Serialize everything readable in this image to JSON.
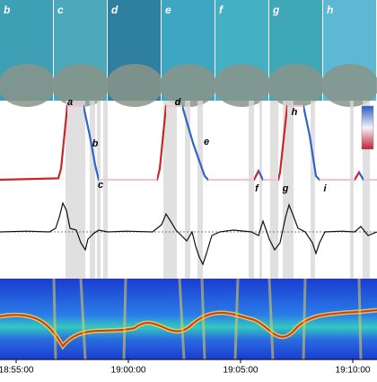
{
  "photo_labels": [
    "b",
    "c",
    "d",
    "e",
    "f",
    "g",
    "h"
  ],
  "chart_data": {
    "type": "line",
    "annotations": [
      "a",
      "b",
      "c",
      "d",
      "e",
      "f",
      "g",
      "h",
      "i"
    ],
    "xlim": [
      54.28,
      71.08
    ],
    "xticks": [
      {
        "value": 55,
        "label": "18:55:00"
      },
      {
        "value": 60,
        "label": "19:00:00"
      },
      {
        "value": 65,
        "label": "19:05:00"
      },
      {
        "value": 70,
        "label": "19:10:00"
      }
    ],
    "shaded_intervals": [
      [
        57.2,
        58.08
      ],
      [
        58.28,
        58.52
      ],
      [
        58.6,
        58.76
      ],
      [
        58.88,
        59.08
      ],
      [
        61.56,
        62.16
      ],
      [
        62.52,
        62.76
      ],
      [
        63.08,
        63.32
      ],
      [
        65.36,
        65.6
      ],
      [
        65.84,
        65.96
      ],
      [
        66.32,
        66.68
      ],
      [
        66.88,
        67.36
      ],
      [
        68.12,
        68.32
      ],
      [
        69.88,
        70.04
      ],
      [
        70.44,
        70.76
      ]
    ],
    "series": [
      {
        "x": [
          54.28,
          56.88,
          57.0,
          57.28,
          58.0,
          58.28,
          58.52,
          58.68,
          61.28,
          61.4,
          61.68,
          62.4,
          62.88,
          63.4,
          63.56,
          65.6,
          65.8,
          66.0,
          66.68,
          66.76,
          67.08,
          67.8,
          68.08,
          68.36,
          68.52,
          70.08,
          70.28,
          70.48,
          71.08
        ],
        "values": [
          0,
          0.02,
          0.15,
          1,
          1,
          0.6,
          0.2,
          0,
          0,
          0.15,
          1,
          1,
          0.5,
          0.05,
          0,
          0,
          0.12,
          0,
          0,
          0.1,
          1,
          1,
          0.6,
          0.05,
          0,
          0,
          0.1,
          0,
          0
        ]
      },
      {
        "x": [
          54.28,
          55.48,
          56.48,
          56.76,
          56.92,
          57.08,
          57.24,
          57.4,
          57.68,
          57.88,
          58.08,
          58.2,
          58.44,
          58.68,
          59.08,
          59.88,
          61.08,
          61.48,
          61.68,
          61.88,
          62.12,
          62.36,
          62.6,
          62.84,
          63.0,
          63.16,
          63.32,
          63.48,
          63.72,
          64.08,
          64.68,
          65.48,
          65.8,
          66.0,
          66.28,
          66.52,
          66.76,
          67.0,
          67.16,
          67.32,
          67.56,
          67.88,
          68.2,
          68.36,
          68.52,
          68.76,
          69.48,
          70.08,
          70.36,
          70.68,
          71.08
        ],
        "values": [
          0,
          0.02,
          0,
          0.1,
          0.4,
          0.8,
          0.6,
          0.1,
          0.05,
          -0.3,
          -0.5,
          -0.2,
          -0.05,
          0.05,
          0,
          0.02,
          0,
          0.2,
          0.5,
          0.3,
          0.05,
          -0.1,
          -0.25,
          0,
          -0.4,
          -0.7,
          -0.9,
          -0.6,
          -0.1,
          0,
          0.05,
          0,
          -0.1,
          0.3,
          -0.2,
          -0.5,
          -0.3,
          0.4,
          0.75,
          0.5,
          0.1,
          0,
          -0.3,
          -0.6,
          -0.3,
          0,
          0.02,
          0,
          0.15,
          -0.1,
          0
        ]
      }
    ]
  }
}
